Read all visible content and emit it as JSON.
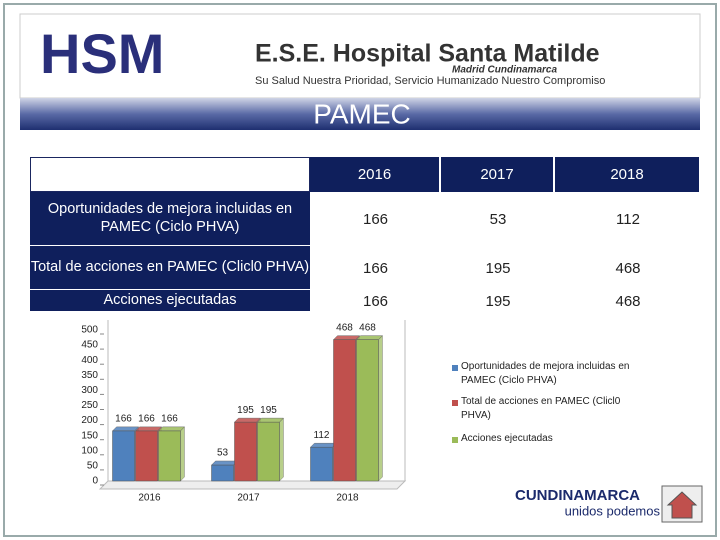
{
  "header": {
    "logo": "HSM",
    "organization": "E.S.E. Hospital Santa Matilde",
    "location": "Madrid Cundinamarca",
    "slogan": "Su Salud Nuestra Prioridad, Servicio Humanizado Nuestro Compromiso",
    "title": "PAMEC"
  },
  "table": {
    "columns": [
      "2016",
      "2017",
      "2018"
    ],
    "rows": [
      {
        "label": "Oportunidades de mejora  incluidas en PAMEC (Ciclo PHVA)",
        "cells": [
          "166",
          "53",
          "112"
        ]
      },
      {
        "label": "Total de acciones en PAMEC (Clicl0 PHVA)",
        "cells": [
          "166",
          "195",
          "468"
        ]
      },
      {
        "label": "Acciones ejecutadas",
        "cells": [
          "166",
          "195",
          "468"
        ]
      }
    ]
  },
  "chart_data": {
    "type": "bar",
    "categories": [
      "2016",
      "2017",
      "2018"
    ],
    "series": [
      {
        "name": "Oportunidades de mejora  incluidas en PAMEC (Ciclo PHVA)",
        "color": "#4f81bd",
        "values": [
          166,
          53,
          112
        ]
      },
      {
        "name": "Total de acciones en PAMEC (Clicl0 PHVA)",
        "color": "#c0504d",
        "values": [
          166,
          195,
          468
        ]
      },
      {
        "name": "Acciones ejecutadas",
        "color": "#9bbb59",
        "values": [
          166,
          195,
          468
        ]
      }
    ],
    "ylim": [
      0,
      500
    ],
    "yticks": [
      0,
      50,
      100,
      150,
      200,
      250,
      300,
      350,
      400,
      450,
      500
    ],
    "legend": "right"
  },
  "footer": {
    "brand": "CUNDINAMARCA",
    "motto": "unidos podemos"
  }
}
